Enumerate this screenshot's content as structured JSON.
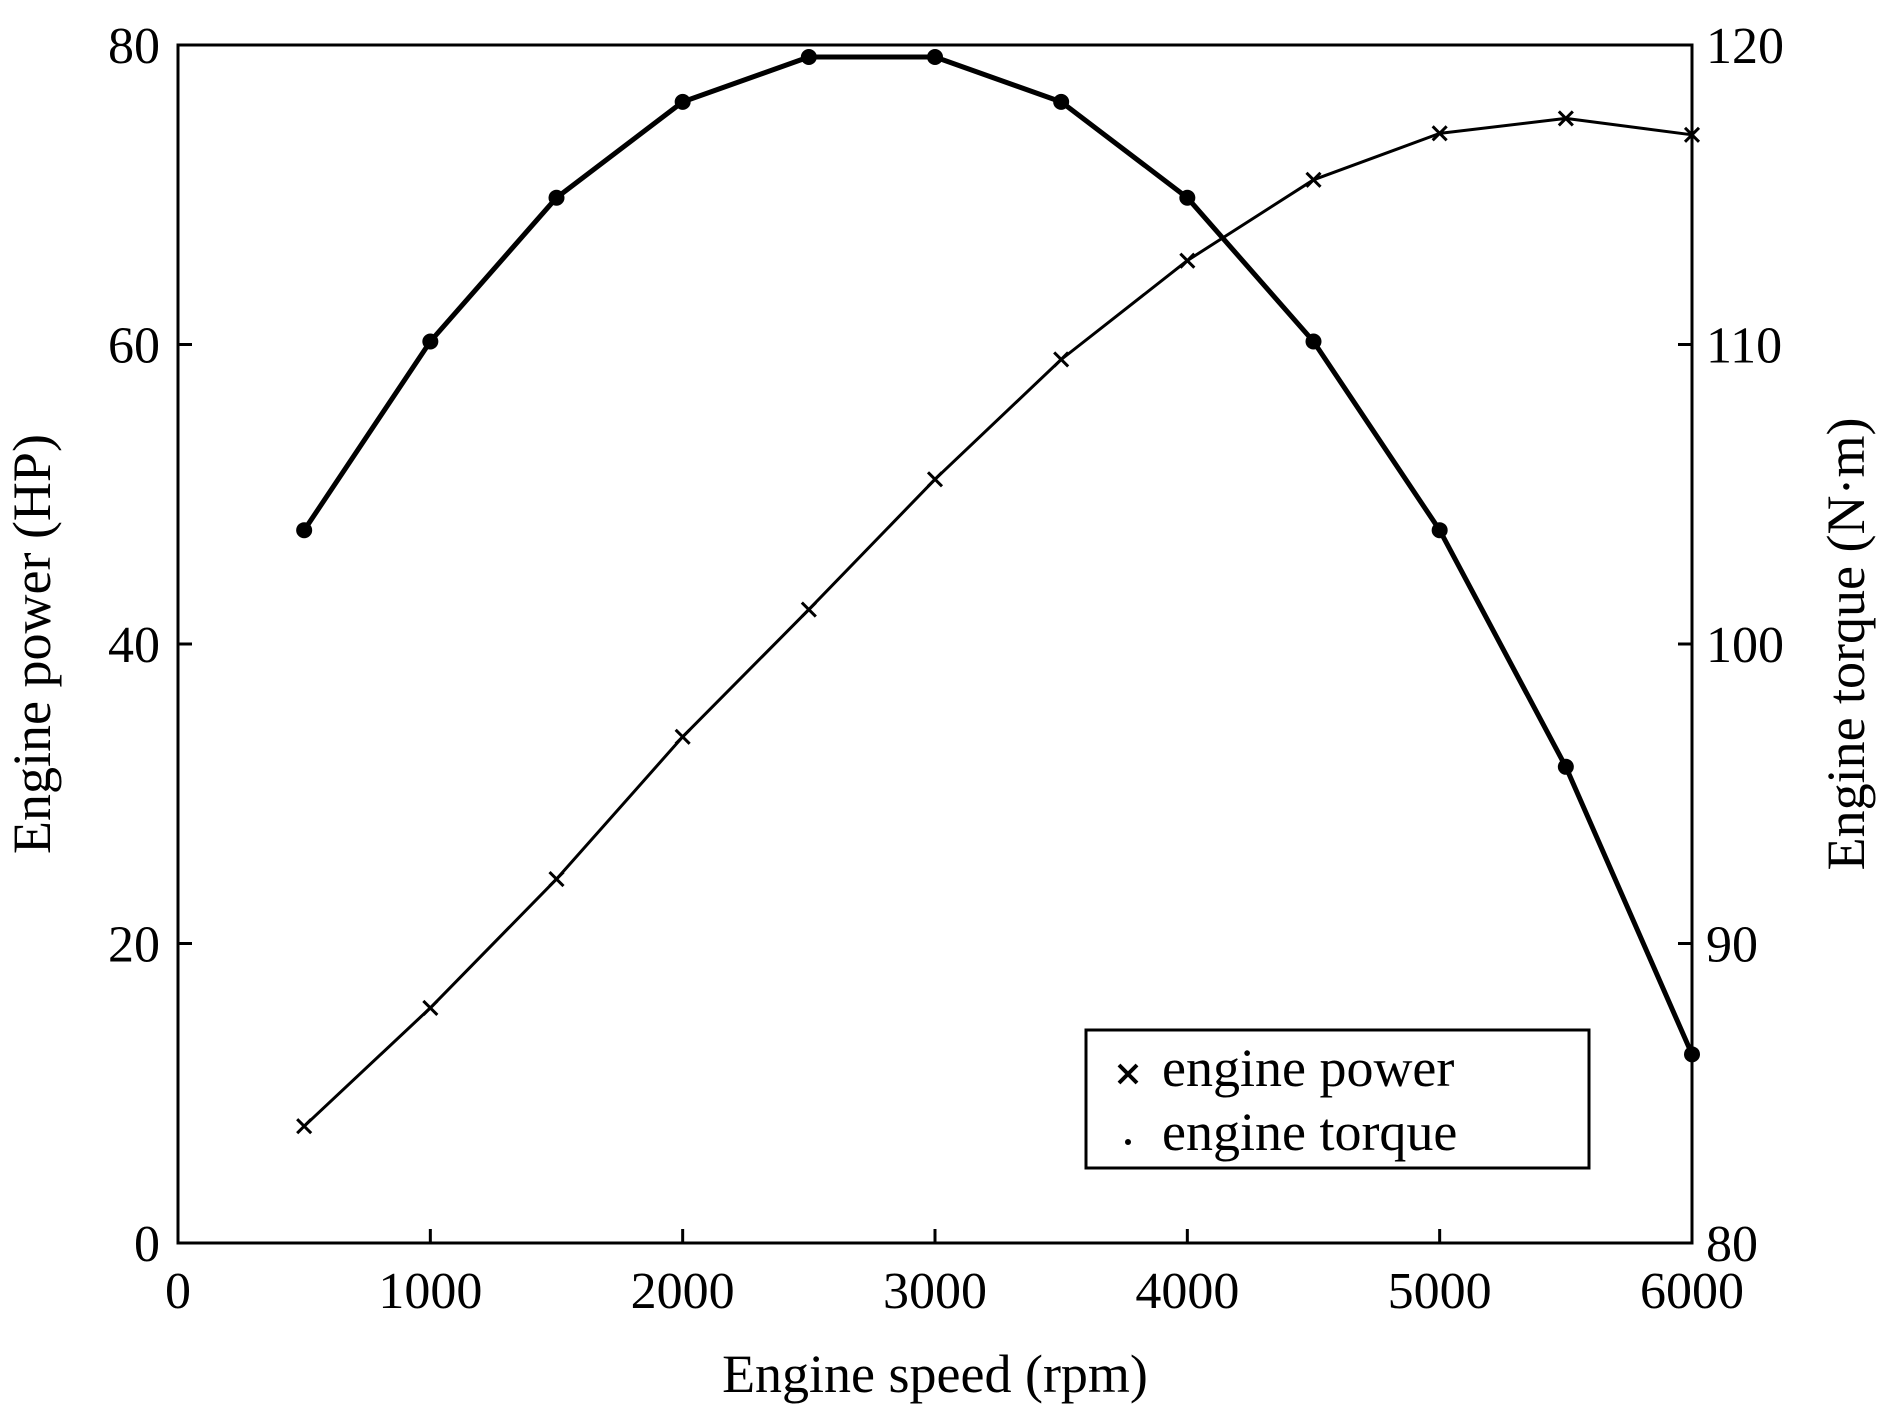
{
  "chart_data": {
    "type": "line",
    "x": [
      500,
      1000,
      1500,
      2000,
      2500,
      3000,
      3500,
      4000,
      4500,
      5000,
      5500,
      6000
    ],
    "xlabel": "Engine speed (rpm)",
    "xlim": [
      0,
      6000
    ],
    "xticks": [
      "0",
      "1000",
      "2000",
      "3000",
      "4000",
      "5000",
      "6000"
    ],
    "xtick_values": [
      0,
      1000,
      2000,
      3000,
      4000,
      5000,
      6000
    ],
    "ylabel": "Engine power (HP)",
    "ylim": [
      0,
      80
    ],
    "yticks": [
      "0",
      "20",
      "40",
      "60",
      "80"
    ],
    "ytick_values": [
      0,
      20,
      40,
      60,
      80
    ],
    "y2label": "Engine torque (N·m)",
    "y2lim": [
      80,
      120
    ],
    "y2ticks": [
      "80",
      "90",
      "100",
      "110",
      "120"
    ],
    "y2tick_values": [
      80,
      90,
      100,
      110,
      120
    ],
    "grid": false,
    "legend_position": "bottom-right",
    "series": [
      {
        "name": "engine power",
        "marker": "x",
        "axis": "left",
        "values": [
          7.8,
          15.7,
          24.3,
          33.8,
          42.3,
          51.0,
          59.0,
          65.6,
          71.0,
          74.1,
          75.1,
          74.0
        ]
      },
      {
        "name": "engine torque",
        "marker": "dot",
        "axis": "right",
        "values": [
          103.8,
          110.1,
          114.9,
          118.1,
          119.6,
          119.6,
          118.1,
          114.9,
          110.1,
          103.8,
          95.9,
          86.3
        ]
      }
    ]
  }
}
